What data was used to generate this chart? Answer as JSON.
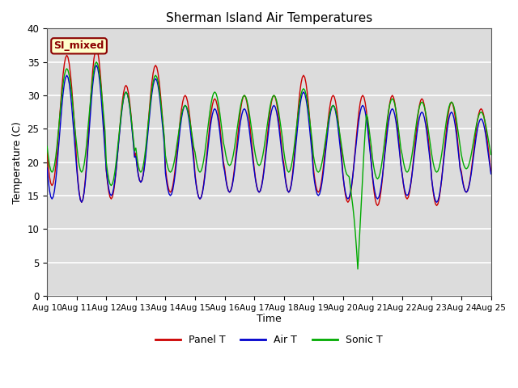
{
  "title": "Sherman Island Air Temperatures",
  "xlabel": "Time",
  "ylabel": "Temperature (C)",
  "ylim": [
    0,
    40
  ],
  "background_color": "#dcdcdc",
  "grid_color": "white",
  "legend_label": "SI_mixed",
  "legend_bg": "#ffffcc",
  "legend_border": "#8B0000",
  "colors": {
    "panel": "#cc0000",
    "air": "#0000cc",
    "sonic": "#00aa00"
  },
  "x_tick_labels": [
    "Aug 10",
    "Aug 11",
    "Aug 12",
    "Aug 13",
    "Aug 14",
    "Aug 15",
    "Aug 16",
    "Aug 17",
    "Aug 18",
    "Aug 19",
    "Aug 20",
    "Aug 21",
    "Aug 22",
    "Aug 23",
    "Aug 24",
    "Aug 25"
  ],
  "day_peaks_panel": [
    36.0,
    37.0,
    31.5,
    34.5,
    30.0,
    29.5,
    30.0,
    30.0,
    33.0,
    30.0,
    30.0,
    30.0,
    29.5,
    29.0,
    28.0
  ],
  "day_troughs_panel": [
    16.5,
    14.0,
    14.5,
    17.0,
    15.5,
    14.5,
    15.5,
    15.5,
    15.5,
    15.5,
    14.0,
    13.5,
    14.5,
    13.5,
    15.5
  ],
  "day_peaks_air": [
    33.0,
    34.5,
    30.5,
    32.5,
    28.5,
    28.0,
    28.0,
    28.5,
    30.5,
    28.5,
    28.5,
    28.0,
    27.5,
    27.5,
    26.5
  ],
  "day_troughs_air": [
    14.5,
    14.0,
    15.0,
    17.0,
    15.0,
    14.5,
    15.5,
    15.5,
    15.5,
    15.0,
    14.5,
    14.5,
    15.0,
    14.0,
    15.5
  ],
  "day_peaks_sonic": [
    34.0,
    35.0,
    30.5,
    33.0,
    28.5,
    30.5,
    30.0,
    30.0,
    31.0,
    28.5,
    29.5,
    29.5,
    29.0,
    29.0,
    27.5
  ],
  "day_troughs_sonic": [
    18.5,
    18.5,
    16.5,
    18.5,
    18.5,
    18.5,
    19.5,
    19.5,
    18.5,
    18.5,
    18.0,
    17.5,
    18.5,
    18.5,
    19.0
  ],
  "sonic_spike_day": 10,
  "sonic_spike_value": 4.0,
  "points_per_day": 24
}
